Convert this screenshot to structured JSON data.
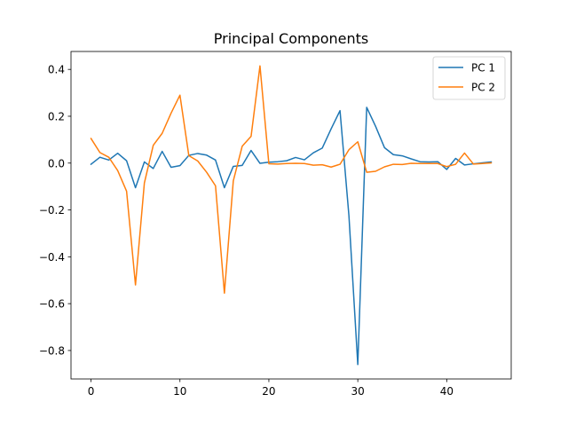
{
  "chart_data": {
    "type": "line",
    "title": "Principal Components",
    "xlabel": "",
    "ylabel": "",
    "xlim": [
      -2.25,
      47.25
    ],
    "ylim": [
      -0.9215,
      0.4765
    ],
    "xticks": [
      0,
      10,
      20,
      30,
      40
    ],
    "yticks": [
      -0.8,
      -0.6,
      -0.4,
      -0.2,
      0.0,
      0.2,
      0.4
    ],
    "ytick_labels": [
      "−0.8",
      "−0.6",
      "−0.4",
      "−0.2",
      "0.0",
      "0.2",
      "0.4"
    ],
    "grid": false,
    "legend_position": "top-right",
    "x": [
      0,
      1,
      2,
      3,
      4,
      5,
      6,
      7,
      8,
      9,
      10,
      11,
      12,
      13,
      14,
      15,
      16,
      17,
      18,
      19,
      20,
      21,
      22,
      23,
      24,
      25,
      26,
      27,
      28,
      29,
      30,
      31,
      32,
      33,
      34,
      35,
      36,
      37,
      38,
      39,
      40,
      41,
      42,
      43,
      44,
      45
    ],
    "series": [
      {
        "name": "PC 1",
        "color": "#1f77b4",
        "values": [
          -0.005,
          0.025,
          0.013,
          0.042,
          0.01,
          -0.105,
          0.005,
          -0.023,
          0.05,
          -0.018,
          -0.011,
          0.033,
          0.041,
          0.034,
          0.013,
          -0.105,
          -0.014,
          -0.01,
          0.054,
          -0.001,
          0.004,
          0.006,
          0.01,
          0.024,
          0.014,
          0.044,
          0.064,
          0.146,
          0.224,
          -0.223,
          -0.86,
          0.238,
          0.157,
          0.066,
          0.036,
          0.031,
          0.018,
          0.006,
          0.005,
          0.006,
          -0.027,
          0.02,
          -0.008,
          -0.003,
          0.001,
          0.005
        ]
      },
      {
        "name": "PC 2",
        "color": "#ff7f0e",
        "values": [
          0.105,
          0.045,
          0.025,
          -0.032,
          -0.12,
          -0.52,
          -0.085,
          0.076,
          0.127,
          0.213,
          0.29,
          0.032,
          0.009,
          -0.039,
          -0.097,
          -0.555,
          -0.076,
          0.072,
          0.114,
          0.415,
          -0.003,
          -0.004,
          -0.002,
          -0.001,
          -0.002,
          -0.009,
          -0.007,
          -0.017,
          -0.005,
          0.057,
          0.091,
          -0.039,
          -0.035,
          -0.016,
          -0.005,
          -0.006,
          -0.001,
          -0.002,
          -0.002,
          -0.002,
          -0.015,
          -0.005,
          0.043,
          -0.004,
          -0.002,
          0.001
        ]
      }
    ]
  }
}
